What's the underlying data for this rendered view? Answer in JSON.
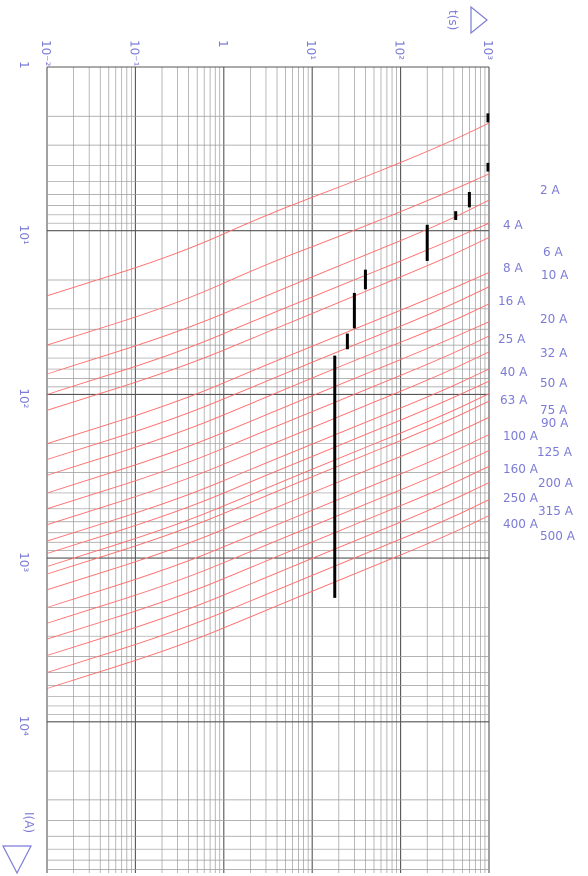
{
  "chart_data": {
    "type": "line",
    "title": "",
    "orientation": "rotated-90",
    "time_axis": {
      "label": "t(s)",
      "scale": "log",
      "range": [
        0.01,
        1000
      ],
      "tick_labels": [
        "10⁻²",
        "10⁻¹",
        "1",
        "10¹",
        "10²",
        "10³"
      ]
    },
    "current_axis": {
      "label": "I(A)",
      "scale": "log",
      "range": [
        1,
        30000
      ],
      "tick_labels": [
        "1",
        "10¹",
        "10²",
        "10³",
        "10⁴"
      ]
    },
    "grid": true,
    "curve_color": "#ff6b6b",
    "label_color": "#7b7bd6",
    "series": [
      {
        "name": "2 A",
        "points": [
          [
            2.2,
            1000
          ],
          [
            3,
            300
          ],
          [
            5,
            30
          ],
          [
            8,
            3
          ],
          [
            14,
            0.3
          ],
          [
            25,
            0.01
          ]
        ]
      },
      {
        "name": "4 A",
        "points": [
          [
            4.5,
            1000
          ],
          [
            6,
            300
          ],
          [
            10,
            30
          ],
          [
            16,
            3
          ],
          [
            28,
            0.3
          ],
          [
            50,
            0.01
          ]
        ]
      },
      {
        "name": "6 A",
        "points": [
          [
            6.5,
            1000
          ],
          [
            9,
            300
          ],
          [
            15,
            30
          ],
          [
            25,
            3
          ],
          [
            42,
            0.3
          ],
          [
            75,
            0.01
          ]
        ]
      },
      {
        "name": "8 A",
        "points": [
          [
            9,
            1000
          ],
          [
            12,
            300
          ],
          [
            20,
            30
          ],
          [
            33,
            3
          ],
          [
            56,
            0.3
          ],
          [
            100,
            0.01
          ]
        ]
      },
      {
        "name": "10 A",
        "points": [
          [
            11,
            1000
          ],
          [
            15,
            300
          ],
          [
            25,
            30
          ],
          [
            42,
            3
          ],
          [
            70,
            0.3
          ],
          [
            125,
            0.01
          ]
        ]
      },
      {
        "name": "16 A",
        "points": [
          [
            18,
            1000
          ],
          [
            24,
            300
          ],
          [
            40,
            30
          ],
          [
            66,
            3
          ],
          [
            112,
            0.3
          ],
          [
            200,
            0.01
          ]
        ]
      },
      {
        "name": "20 A",
        "points": [
          [
            22,
            1000
          ],
          [
            30,
            300
          ],
          [
            50,
            30
          ],
          [
            83,
            3
          ],
          [
            140,
            0.3
          ],
          [
            250,
            0.01
          ]
        ]
      },
      {
        "name": "25 A",
        "points": [
          [
            28,
            1000
          ],
          [
            38,
            300
          ],
          [
            62,
            30
          ],
          [
            104,
            3
          ],
          [
            175,
            0.3
          ],
          [
            312,
            0.01
          ]
        ]
      },
      {
        "name": "32 A",
        "points": [
          [
            36,
            1000
          ],
          [
            48,
            300
          ],
          [
            80,
            30
          ],
          [
            133,
            3
          ],
          [
            224,
            0.3
          ],
          [
            400,
            0.01
          ]
        ]
      },
      {
        "name": "40 A",
        "points": [
          [
            44,
            1000
          ],
          [
            60,
            300
          ],
          [
            100,
            30
          ],
          [
            166,
            3
          ],
          [
            280,
            0.3
          ],
          [
            500,
            0.01
          ]
        ]
      },
      {
        "name": "50 A",
        "points": [
          [
            55,
            1000
          ],
          [
            75,
            300
          ],
          [
            125,
            30
          ],
          [
            208,
            3
          ],
          [
            350,
            0.3
          ],
          [
            625,
            0.01
          ]
        ]
      },
      {
        "name": "63 A",
        "points": [
          [
            70,
            1000
          ],
          [
            95,
            300
          ],
          [
            158,
            30
          ],
          [
            262,
            3
          ],
          [
            441,
            0.3
          ],
          [
            787,
            0.01
          ]
        ]
      },
      {
        "name": "75 A",
        "points": [
          [
            83,
            1000
          ],
          [
            112,
            300
          ],
          [
            188,
            30
          ],
          [
            312,
            3
          ],
          [
            525,
            0.3
          ],
          [
            937,
            0.01
          ]
        ]
      },
      {
        "name": "90 A",
        "points": [
          [
            99,
            1000
          ],
          [
            135,
            300
          ],
          [
            225,
            30
          ],
          [
            374,
            3
          ],
          [
            630,
            0.3
          ],
          [
            1125,
            0.01
          ]
        ]
      },
      {
        "name": "100 A",
        "points": [
          [
            110,
            1000
          ],
          [
            150,
            300
          ],
          [
            250,
            30
          ],
          [
            416,
            3
          ],
          [
            700,
            0.3
          ],
          [
            1250,
            0.01
          ]
        ]
      },
      {
        "name": "125 A",
        "points": [
          [
            138,
            1000
          ],
          [
            188,
            300
          ],
          [
            312,
            30
          ],
          [
            520,
            3
          ],
          [
            875,
            0.3
          ],
          [
            1562,
            0.01
          ]
        ]
      },
      {
        "name": "160 A",
        "points": [
          [
            176,
            1000
          ],
          [
            240,
            300
          ],
          [
            400,
            30
          ],
          [
            665,
            3
          ],
          [
            1120,
            0.3
          ],
          [
            2000,
            0.01
          ]
        ]
      },
      {
        "name": "200 A",
        "points": [
          [
            220,
            1000
          ],
          [
            300,
            300
          ],
          [
            500,
            30
          ],
          [
            832,
            3
          ],
          [
            1400,
            0.3
          ],
          [
            2500,
            0.01
          ]
        ]
      },
      {
        "name": "250 A",
        "points": [
          [
            275,
            1000
          ],
          [
            375,
            300
          ],
          [
            625,
            30
          ],
          [
            1040,
            3
          ],
          [
            1750,
            0.3
          ],
          [
            3125,
            0.01
          ]
        ]
      },
      {
        "name": "315 A",
        "points": [
          [
            346,
            1000
          ],
          [
            472,
            300
          ],
          [
            787,
            30
          ],
          [
            1310,
            3
          ],
          [
            2205,
            0.3
          ],
          [
            3937,
            0.01
          ]
        ]
      },
      {
        "name": "400 A",
        "points": [
          [
            440,
            1000
          ],
          [
            600,
            300
          ],
          [
            1000,
            30
          ],
          [
            1664,
            3
          ],
          [
            2800,
            0.3
          ],
          [
            5000,
            0.01
          ]
        ]
      },
      {
        "name": "500 A",
        "points": [
          [
            550,
            1000
          ],
          [
            750,
            300
          ],
          [
            1250,
            30
          ],
          [
            2080,
            3
          ],
          [
            3500,
            0.3
          ],
          [
            6250,
            0.01
          ]
        ]
      }
    ],
    "markers": [
      {
        "t": 1000,
        "i_from": 1.92,
        "i_to": 2.18
      },
      {
        "t": 1000,
        "i_from": 3.85,
        "i_to": 4.35
      },
      {
        "t": 600,
        "i_from": 5.8,
        "i_to": 7.2
      },
      {
        "t": 420,
        "i_from": 7.6,
        "i_to": 8.6
      },
      {
        "t": 200,
        "i_from": 9.2,
        "i_to": 15.3
      },
      {
        "t": 40,
        "i_from": 17.3,
        "i_to": 22.8
      },
      {
        "t": 30,
        "i_from": 24,
        "i_to": 39.5
      },
      {
        "t": 25,
        "i_from": 42.5,
        "i_to": 53
      },
      {
        "t": 18,
        "i_from": 58,
        "i_to": 1750
      }
    ]
  }
}
